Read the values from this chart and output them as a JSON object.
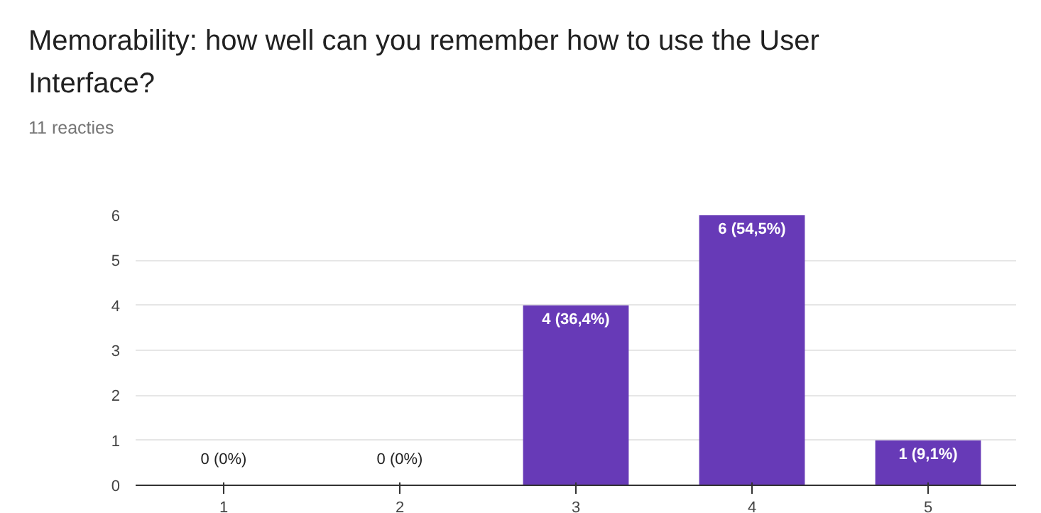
{
  "chart_data": {
    "type": "bar",
    "title": "Memorability: how well can you remember how to use the User Interface?",
    "subtitle": "11 reacties",
    "categories": [
      "1",
      "2",
      "3",
      "4",
      "5"
    ],
    "values": [
      0,
      0,
      4,
      6,
      1
    ],
    "value_labels": [
      "0 (0%)",
      "0 (0%)",
      "4 (36,4%)",
      "6 (54,5%)",
      "1 (9,1%)"
    ],
    "color": "#673ab7",
    "ylim": [
      0,
      6
    ],
    "yticks": [
      0,
      1,
      2,
      3,
      4,
      5,
      6
    ],
    "grid": "y"
  }
}
